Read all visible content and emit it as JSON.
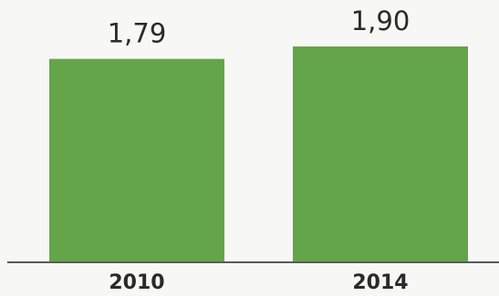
{
  "chart_data": {
    "type": "bar",
    "categories": [
      "2010",
      "2014"
    ],
    "values": [
      1.79,
      1.9
    ],
    "value_labels": [
      "1,79",
      "1,90"
    ],
    "title": "",
    "xlabel": "",
    "ylabel": "",
    "ylim": [
      0,
      1.9
    ],
    "grid": false,
    "legend": "none",
    "colors": {
      "bar": "#63a548",
      "axis": "#5a5a5a",
      "label": "#2a2a2a"
    }
  }
}
